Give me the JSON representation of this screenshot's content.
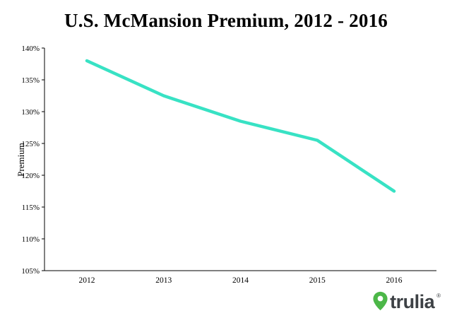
{
  "page": {
    "title": "U.S. McMansion Premium, 2012 - 2016"
  },
  "chart_data": {
    "type": "line",
    "title": "U.S. McMansion Premium, 2012 - 2016",
    "categories": [
      "2012",
      "2013",
      "2014",
      "2015",
      "2016"
    ],
    "series": [
      {
        "name": "U.S. McMansion Premium",
        "values": [
          138,
          132.5,
          128.5,
          125.5,
          117.5
        ]
      }
    ],
    "xlabel": "",
    "ylabel": "Premium",
    "ylim": [
      105,
      140
    ],
    "ytick_step": 5,
    "ytick_suffix": "%",
    "grid": false,
    "legend": "none",
    "line_color": "#38e2c4",
    "axis_color": "#000000"
  },
  "branding": {
    "logo_text": "trulia",
    "registered_mark": "®",
    "logo_color": "#4cb748",
    "text_color": "#3d4145"
  }
}
